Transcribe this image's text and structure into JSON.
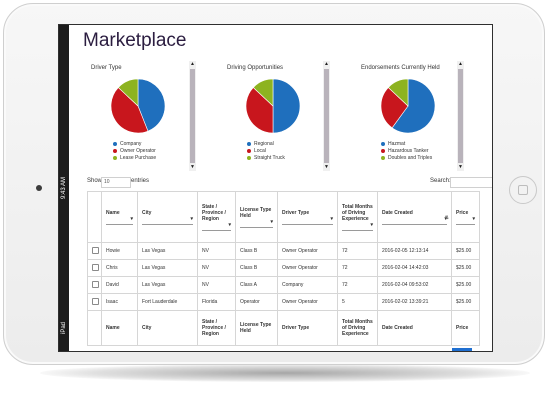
{
  "device": {
    "status_time": "9:43 AM",
    "status_carrier": "iPad"
  },
  "page": {
    "title": "Marketplace"
  },
  "charts": [
    {
      "title": "Driver Type",
      "legend": [
        "Company",
        "Owner Operator",
        "Lease Purchase"
      ]
    },
    {
      "title": "Driving Opportunities",
      "legend": [
        "Regional",
        "Local",
        "Straight Truck"
      ]
    },
    {
      "title": "Endorsements Currently Held",
      "legend": [
        "Hazmat",
        "Hazardous Tanker",
        "Doubles and Triples"
      ]
    }
  ],
  "chart_data": [
    {
      "type": "pie",
      "title": "Driver Type",
      "categories": [
        "Company",
        "Owner Operator",
        "Lease Purchase"
      ],
      "values": [
        44,
        43,
        13
      ],
      "colors": [
        "#1f6fbd",
        "#c8161d",
        "#8db320"
      ]
    },
    {
      "type": "pie",
      "title": "Driving Opportunities",
      "categories": [
        "Regional",
        "Local",
        "Straight Truck"
      ],
      "values": [
        50,
        37,
        13
      ],
      "colors": [
        "#1f6fbd",
        "#c8161d",
        "#8db320"
      ]
    },
    {
      "type": "pie",
      "title": "Endorsements Currently Held",
      "categories": [
        "Hazmat",
        "Hazardous Tanker",
        "Doubles and Triples"
      ],
      "values": [
        60,
        27,
        13
      ],
      "colors": [
        "#1f6fbd",
        "#c8161d",
        "#8db320"
      ]
    }
  ],
  "controls": {
    "show_label": "Show",
    "show_value": "10",
    "entries_label": "entries",
    "search_label": "Search:"
  },
  "table": {
    "columns": [
      "",
      "Name",
      "City",
      "State / Province / Region",
      "License Type Held",
      "Driver Type",
      "Total Months of Driving Experience",
      "Date Created",
      "Price"
    ],
    "footer_columns": [
      "",
      "Name",
      "City",
      "State / Province / Region",
      "License Type Held",
      "Driver Type",
      "Total Months of Driving Experience",
      "Date Created",
      "Price"
    ],
    "rows": [
      [
        "Howie",
        "Las Vegas",
        "NV",
        "Class B",
        "Owner Operator",
        "72",
        "2016-02-05 12:13:14",
        "$25.00"
      ],
      [
        "Chris",
        "Las Vegas",
        "NV",
        "Class B",
        "Owner Operator",
        "72",
        "2016-02-04 14:42:03",
        "$25.00"
      ],
      [
        "David",
        "Las Vegas",
        "NV",
        "Class A",
        "Company",
        "72",
        "2016-02-04 09:53:02",
        "$25.00"
      ],
      [
        "Isaac",
        "Fort Lauderdale",
        "Florida",
        "Operator",
        "Owner Operator",
        "5",
        "2016-02-02 13:39:21",
        "$25.00"
      ]
    ]
  },
  "icons": {
    "scroll_up": "triangle-up-icon",
    "scroll_down": "triangle-down-icon",
    "sort": "sort-icon",
    "filter": "dropdown-arrow-icon"
  }
}
